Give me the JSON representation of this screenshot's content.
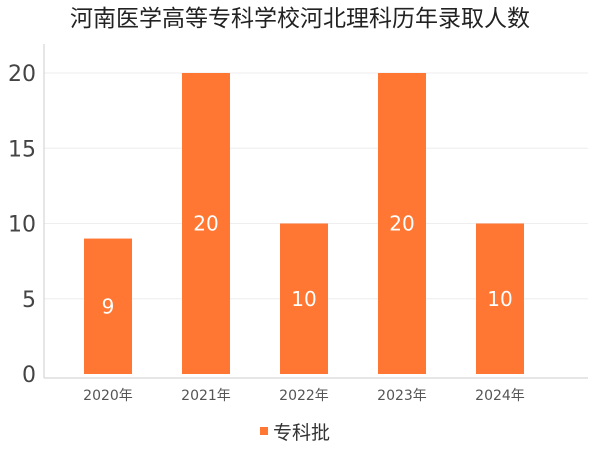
{
  "chart_data": {
    "type": "bar",
    "title": "河南医学高等专科学校河北理科历年录取人数",
    "xlabel": "",
    "ylabel": "",
    "categories": [
      "2020年",
      "2021年",
      "2022年",
      "2023年",
      "2024年"
    ],
    "series": [
      {
        "name": "专科批",
        "values": [
          9,
          20,
          10,
          20,
          10
        ],
        "color": "#FF7733"
      }
    ],
    "ylim": [
      0,
      20
    ],
    "yticks": [
      0,
      5,
      10,
      15,
      20
    ],
    "grid": true,
    "legend_position": "bottom-center",
    "data_labels": true
  }
}
